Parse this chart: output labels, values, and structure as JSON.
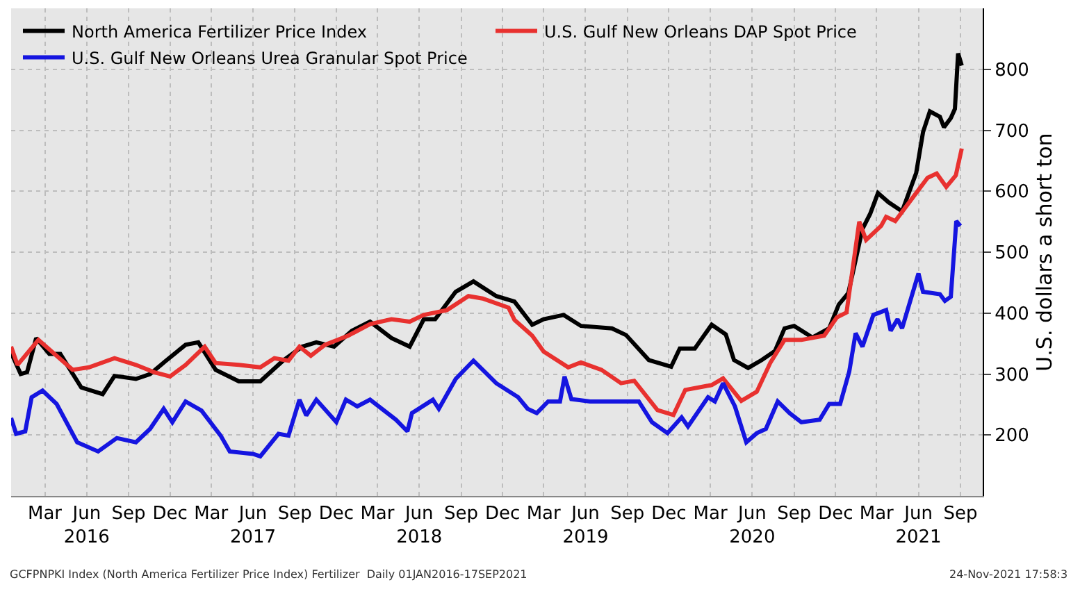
{
  "chart_data": {
    "type": "line",
    "ylabel": "U.S. dollars a short ton",
    "ylim": [
      100,
      900
    ],
    "yticks": [
      200,
      300,
      400,
      500,
      600,
      700,
      800
    ],
    "xlim": [
      "2016-01-01",
      "2021-11-03"
    ],
    "xticks": [
      {
        "value": "2016-03-15",
        "label": "Mar"
      },
      {
        "value": "2016-06-15",
        "label": "Jun\n2016"
      },
      {
        "value": "2016-09-15",
        "label": "Sep"
      },
      {
        "value": "2016-12-15",
        "label": "Dec"
      },
      {
        "value": "2017-03-15",
        "label": "Mar"
      },
      {
        "value": "2017-06-15",
        "label": "Jun\n2017"
      },
      {
        "value": "2017-09-15",
        "label": "Sep"
      },
      {
        "value": "2017-12-15",
        "label": "Dec"
      },
      {
        "value": "2018-03-15",
        "label": "Mar"
      },
      {
        "value": "2018-06-15",
        "label": "Jun\n2018"
      },
      {
        "value": "2018-09-15",
        "label": "Sep"
      },
      {
        "value": "2018-12-15",
        "label": "Dec"
      },
      {
        "value": "2019-03-15",
        "label": "Mar"
      },
      {
        "value": "2019-06-15",
        "label": "Jun\n2019"
      },
      {
        "value": "2019-09-15",
        "label": "Sep"
      },
      {
        "value": "2019-12-15",
        "label": "Dec"
      },
      {
        "value": "2020-03-15",
        "label": "Mar"
      },
      {
        "value": "2020-06-15",
        "label": "Jun\n2020"
      },
      {
        "value": "2020-09-15",
        "label": "Sep"
      },
      {
        "value": "2020-12-15",
        "label": "Dec"
      },
      {
        "value": "2021-03-15",
        "label": "Mar"
      },
      {
        "value": "2021-06-15",
        "label": "Jun\n2021"
      },
      {
        "value": "2021-09-15",
        "label": "Sep"
      }
    ],
    "grid": true,
    "legend": "top left",
    "annotations": [
      "GCFPNPKI Index (North America Fertilizer Price Index) Fertilizer  Daily 01JAN2016-17SEP2021",
      "24-Nov-2021 17:58:3"
    ],
    "series": [
      {
        "name": "North America Fertilizer Price Index",
        "color": "#000000",
        "x": [
          "2016-01-01",
          "2016-01-22",
          "2016-02-05",
          "2016-02-25",
          "2016-03-25",
          "2016-04-18",
          "2016-06-03",
          "2016-07-20",
          "2016-08-15",
          "2016-10-01",
          "2016-11-01",
          "2016-12-06",
          "2017-01-18",
          "2017-02-15",
          "2017-03-25",
          "2017-05-15",
          "2017-07-01",
          "2017-08-20",
          "2017-10-01",
          "2017-11-01",
          "2017-12-10",
          "2018-01-18",
          "2018-02-27",
          "2018-04-15",
          "2018-05-25",
          "2018-06-25",
          "2018-07-20",
          "2018-09-03",
          "2018-10-12",
          "2018-12-01",
          "2019-01-10",
          "2019-02-18",
          "2019-03-15",
          "2019-04-28",
          "2019-06-05",
          "2019-08-12",
          "2019-09-12",
          "2019-11-01",
          "2019-12-20",
          "2020-01-08",
          "2020-02-10",
          "2020-03-18",
          "2020-04-18",
          "2020-05-06",
          "2020-06-06",
          "2020-07-06",
          "2020-08-04",
          "2020-08-25",
          "2020-09-15",
          "2020-10-25",
          "2020-12-01",
          "2020-12-22",
          "2021-01-12",
          "2021-02-12",
          "2021-03-01",
          "2021-03-18",
          "2021-04-10",
          "2021-05-10",
          "2021-06-10",
          "2021-06-25",
          "2021-07-10",
          "2021-08-01",
          "2021-08-10",
          "2021-08-25",
          "2021-09-03",
          "2021-09-10",
          "2021-09-18"
        ],
        "values": [
          335,
          300,
          303,
          359,
          333,
          333,
          278,
          267,
          297,
          292,
          300,
          322,
          348,
          352,
          307,
          288,
          288,
          322,
          345,
          352,
          345,
          371,
          386,
          359,
          345,
          390,
          390,
          435,
          452,
          428,
          419,
          381,
          390,
          397,
          379,
          375,
          364,
          323,
          312,
          342,
          342,
          381,
          365,
          323,
          310,
          323,
          338,
          375,
          379,
          360,
          375,
          414,
          433,
          538,
          563,
          597,
          582,
          567,
          630,
          697,
          731,
          722,
          705,
          720,
          735,
          826,
          806
        ]
      },
      {
        "name": "U.S. Gulf New Orleans DAP Spot Price",
        "color": "#e8312f",
        "x": [
          "2016-01-01",
          "2016-01-15",
          "2016-03-01",
          "2016-04-10",
          "2016-05-15",
          "2016-06-20",
          "2016-08-15",
          "2016-10-01",
          "2016-11-10",
          "2016-12-15",
          "2017-01-18",
          "2017-03-01",
          "2017-03-25",
          "2017-05-15",
          "2017-07-01",
          "2017-08-01",
          "2017-09-01",
          "2017-09-25",
          "2017-10-20",
          "2017-11-20",
          "2018-01-10",
          "2018-02-27",
          "2018-04-15",
          "2018-05-25",
          "2018-06-25",
          "2018-08-15",
          "2018-10-01",
          "2018-11-01",
          "2018-12-28",
          "2019-01-10",
          "2019-02-18",
          "2019-03-15",
          "2019-05-08",
          "2019-06-05",
          "2019-07-20",
          "2019-09-01",
          "2019-09-30",
          "2019-11-20",
          "2019-12-25",
          "2020-01-20",
          "2020-03-18",
          "2020-04-12",
          "2020-05-22",
          "2020-06-25",
          "2020-07-25",
          "2020-08-25",
          "2020-10-01",
          "2020-11-20",
          "2020-12-18",
          "2021-01-08",
          "2021-02-05",
          "2021-02-20",
          "2021-03-25",
          "2021-04-05",
          "2021-04-25",
          "2021-05-25",
          "2021-07-05",
          "2021-07-25",
          "2021-08-15",
          "2021-09-05",
          "2021-09-18"
        ],
        "values": [
          345,
          315,
          356,
          330,
          307,
          311,
          326,
          315,
          303,
          296,
          315,
          345,
          318,
          315,
          311,
          326,
          322,
          345,
          330,
          348,
          363,
          382,
          390,
          386,
          397,
          405,
          428,
          424,
          409,
          389,
          363,
          337,
          311,
          319,
          307,
          285,
          289,
          241,
          233,
          274,
          282,
          293,
          256,
          271,
          319,
          356,
          356,
          363,
          393,
          401,
          550,
          520,
          543,
          558,
          551,
          581,
          622,
          629,
          607,
          626,
          670
        ]
      },
      {
        "name": "U.S. Gulf New Orleans Urea Granular Spot Price",
        "color": "#1515e0",
        "x": [
          "2016-01-01",
          "2016-01-12",
          "2016-02-01",
          "2016-02-15",
          "2016-03-10",
          "2016-04-10",
          "2016-05-25",
          "2016-07-10",
          "2016-08-20",
          "2016-10-01",
          "2016-11-01",
          "2016-12-01",
          "2016-12-20",
          "2017-01-18",
          "2017-02-22",
          "2017-04-05",
          "2017-04-25",
          "2017-06-15",
          "2017-07-01",
          "2017-08-10",
          "2017-09-01",
          "2017-09-25",
          "2017-10-10",
          "2017-11-01",
          "2017-12-15",
          "2018-01-05",
          "2018-01-30",
          "2018-02-27",
          "2018-04-25",
          "2018-05-20",
          "2018-05-30",
          "2018-07-15",
          "2018-07-28",
          "2018-09-03",
          "2018-10-12",
          "2018-12-01",
          "2019-01-18",
          "2019-02-08",
          "2019-02-28",
          "2019-03-25",
          "2019-04-20",
          "2019-04-30",
          "2019-05-15",
          "2019-06-25",
          "2019-08-22",
          "2019-10-10",
          "2019-11-08",
          "2019-12-12",
          "2020-01-12",
          "2020-01-26",
          "2020-03-10",
          "2020-03-25",
          "2020-04-12",
          "2020-05-08",
          "2020-06-02",
          "2020-06-25",
          "2020-07-15",
          "2020-08-10",
          "2020-09-05",
          "2020-10-01",
          "2020-11-10",
          "2020-12-01",
          "2020-12-25",
          "2021-01-14",
          "2021-01-28",
          "2021-02-12",
          "2021-03-08",
          "2021-04-05",
          "2021-04-15",
          "2021-04-30",
          "2021-05-10",
          "2021-06-15",
          "2021-06-25",
          "2021-08-01",
          "2021-08-12",
          "2021-08-25",
          "2021-09-06",
          "2021-09-15"
        ],
        "values": [
          228,
          202,
          206,
          262,
          273,
          251,
          188,
          173,
          195,
          188,
          210,
          243,
          221,
          255,
          240,
          199,
          173,
          169,
          165,
          202,
          199,
          258,
          232,
          258,
          221,
          258,
          247,
          258,
          225,
          206,
          236,
          258,
          243,
          292,
          322,
          285,
          262,
          243,
          236,
          255,
          255,
          296,
          259,
          255,
          255,
          255,
          221,
          203,
          229,
          214,
          262,
          255,
          285,
          247,
          188,
          203,
          210,
          255,
          236,
          221,
          225,
          251,
          251,
          304,
          367,
          345,
          397,
          405,
          371,
          390,
          375,
          465,
          435,
          431,
          420,
          427,
          551,
          543
        ]
      }
    ]
  }
}
